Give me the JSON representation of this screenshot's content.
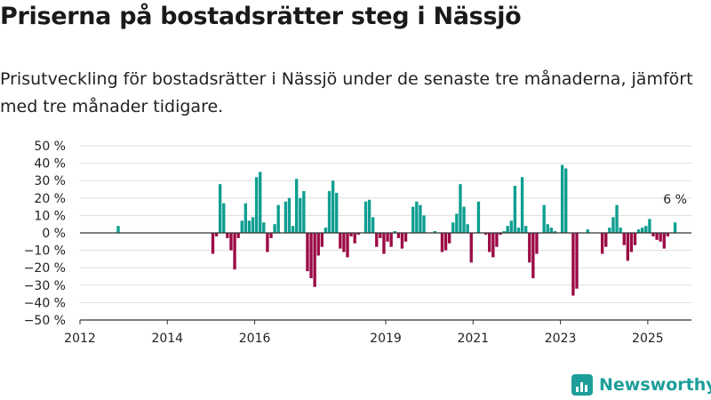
{
  "title": "Priserna på bostadsrätter steg i Nässjö",
  "subtitle": "Prisutveckling för bostadsrätter i Nässjö under de senaste tre månaderna, jämfört med tre månader tidigare.",
  "brand": "Newsworthy",
  "colors": {
    "positive": "#0e9e91",
    "negative": "#9b0a45",
    "grid": "#dddddd",
    "axis": "#333333",
    "brand": "#1d9e9a"
  },
  "chart_data": {
    "type": "bar",
    "title": "",
    "xlabel": "",
    "ylabel": "",
    "ylim": [
      -50,
      50
    ],
    "y_ticks": [
      "50 %",
      "40 %",
      "30 %",
      "20 %",
      "10 %",
      "0 %",
      "−10 %",
      "−20 %",
      "−30 %",
      "−40 %",
      "−50 %"
    ],
    "x_ticks": [
      "2012",
      "2014",
      "2016",
      "2019",
      "2021",
      "2023",
      "2025"
    ],
    "x_range": [
      "2012-01",
      "2025-12"
    ],
    "grid": true,
    "annotation": {
      "label": "6 %",
      "x": "2025-08",
      "value": 6
    },
    "series": [
      {
        "values": [
          {
            "x": "2012-11",
            "y": 4
          },
          {
            "x": "2015-01",
            "y": -12
          },
          {
            "x": "2015-02",
            "y": -2
          },
          {
            "x": "2015-03",
            "y": 28
          },
          {
            "x": "2015-04",
            "y": 17
          },
          {
            "x": "2015-05",
            "y": -3
          },
          {
            "x": "2015-06",
            "y": -10
          },
          {
            "x": "2015-07",
            "y": -21
          },
          {
            "x": "2015-08",
            "y": -3
          },
          {
            "x": "2015-09",
            "y": 7
          },
          {
            "x": "2015-10",
            "y": 17
          },
          {
            "x": "2015-11",
            "y": 7
          },
          {
            "x": "2015-12",
            "y": 9
          },
          {
            "x": "2016-01",
            "y": 32
          },
          {
            "x": "2016-02",
            "y": 35
          },
          {
            "x": "2016-03",
            "y": 6
          },
          {
            "x": "2016-04",
            "y": -11
          },
          {
            "x": "2016-05",
            "y": -3
          },
          {
            "x": "2016-06",
            "y": 5
          },
          {
            "x": "2016-07",
            "y": 16
          },
          {
            "x": "2016-09",
            "y": 18
          },
          {
            "x": "2016-10",
            "y": 20
          },
          {
            "x": "2016-11",
            "y": 4
          },
          {
            "x": "2016-12",
            "y": 31
          },
          {
            "x": "2017-01",
            "y": 20
          },
          {
            "x": "2017-02",
            "y": 24
          },
          {
            "x": "2017-03",
            "y": -22
          },
          {
            "x": "2017-04",
            "y": -26
          },
          {
            "x": "2017-05",
            "y": -31
          },
          {
            "x": "2017-06",
            "y": -13
          },
          {
            "x": "2017-07",
            "y": -8
          },
          {
            "x": "2017-08",
            "y": 3
          },
          {
            "x": "2017-09",
            "y": 24
          },
          {
            "x": "2017-10",
            "y": 30
          },
          {
            "x": "2017-11",
            "y": 23
          },
          {
            "x": "2017-12",
            "y": -9
          },
          {
            "x": "2018-01",
            "y": -11
          },
          {
            "x": "2018-02",
            "y": -14
          },
          {
            "x": "2018-03",
            "y": -2
          },
          {
            "x": "2018-04",
            "y": -6
          },
          {
            "x": "2018-05",
            "y": -1
          },
          {
            "x": "2018-07",
            "y": 18
          },
          {
            "x": "2018-08",
            "y": 19
          },
          {
            "x": "2018-09",
            "y": 9
          },
          {
            "x": "2018-10",
            "y": -8
          },
          {
            "x": "2018-11",
            "y": -3
          },
          {
            "x": "2018-12",
            "y": -12
          },
          {
            "x": "2019-01",
            "y": -5
          },
          {
            "x": "2019-02",
            "y": -8
          },
          {
            "x": "2019-03",
            "y": 1
          },
          {
            "x": "2019-04",
            "y": -3
          },
          {
            "x": "2019-05",
            "y": -9
          },
          {
            "x": "2019-06",
            "y": -5
          },
          {
            "x": "2019-08",
            "y": 15
          },
          {
            "x": "2019-09",
            "y": 18
          },
          {
            "x": "2019-10",
            "y": 16
          },
          {
            "x": "2019-11",
            "y": 10
          },
          {
            "x": "2020-02",
            "y": 1
          },
          {
            "x": "2020-04",
            "y": -11
          },
          {
            "x": "2020-05",
            "y": -10
          },
          {
            "x": "2020-06",
            "y": -6
          },
          {
            "x": "2020-07",
            "y": 6
          },
          {
            "x": "2020-08",
            "y": 11
          },
          {
            "x": "2020-09",
            "y": 28
          },
          {
            "x": "2020-10",
            "y": 15
          },
          {
            "x": "2020-11",
            "y": 5
          },
          {
            "x": "2020-12",
            "y": -17
          },
          {
            "x": "2021-02",
            "y": 18
          },
          {
            "x": "2021-04",
            "y": -1
          },
          {
            "x": "2021-05",
            "y": -11
          },
          {
            "x": "2021-06",
            "y": -14
          },
          {
            "x": "2021-07",
            "y": -8
          },
          {
            "x": "2021-08",
            "y": -1
          },
          {
            "x": "2021-09",
            "y": 1
          },
          {
            "x": "2021-10",
            "y": 4
          },
          {
            "x": "2021-11",
            "y": 7
          },
          {
            "x": "2021-12",
            "y": 27
          },
          {
            "x": "2022-01",
            "y": 3
          },
          {
            "x": "2022-02",
            "y": 32
          },
          {
            "x": "2022-03",
            "y": 4
          },
          {
            "x": "2022-04",
            "y": -17
          },
          {
            "x": "2022-05",
            "y": -26
          },
          {
            "x": "2022-06",
            "y": -12
          },
          {
            "x": "2022-08",
            "y": 16
          },
          {
            "x": "2022-09",
            "y": 5
          },
          {
            "x": "2022-10",
            "y": 3
          },
          {
            "x": "2022-11",
            "y": 1
          },
          {
            "x": "2023-01",
            "y": 39
          },
          {
            "x": "2023-02",
            "y": 37
          },
          {
            "x": "2023-04",
            "y": -36
          },
          {
            "x": "2023-05",
            "y": -32
          },
          {
            "x": "2023-08",
            "y": 2
          },
          {
            "x": "2023-12",
            "y": -12
          },
          {
            "x": "2024-01",
            "y": -8
          },
          {
            "x": "2024-02",
            "y": 3
          },
          {
            "x": "2024-03",
            "y": 9
          },
          {
            "x": "2024-04",
            "y": 16
          },
          {
            "x": "2024-05",
            "y": 3
          },
          {
            "x": "2024-06",
            "y": -7
          },
          {
            "x": "2024-07",
            "y": -16
          },
          {
            "x": "2024-08",
            "y": -11
          },
          {
            "x": "2024-09",
            "y": -7
          },
          {
            "x": "2024-10",
            "y": 2
          },
          {
            "x": "2024-11",
            "y": 3
          },
          {
            "x": "2024-12",
            "y": 4
          },
          {
            "x": "2025-01",
            "y": 8
          },
          {
            "x": "2025-02",
            "y": -2
          },
          {
            "x": "2025-03",
            "y": -4
          },
          {
            "x": "2025-04",
            "y": -5
          },
          {
            "x": "2025-05",
            "y": -9
          },
          {
            "x": "2025-06",
            "y": -2
          },
          {
            "x": "2025-08",
            "y": 6
          }
        ]
      }
    ]
  }
}
